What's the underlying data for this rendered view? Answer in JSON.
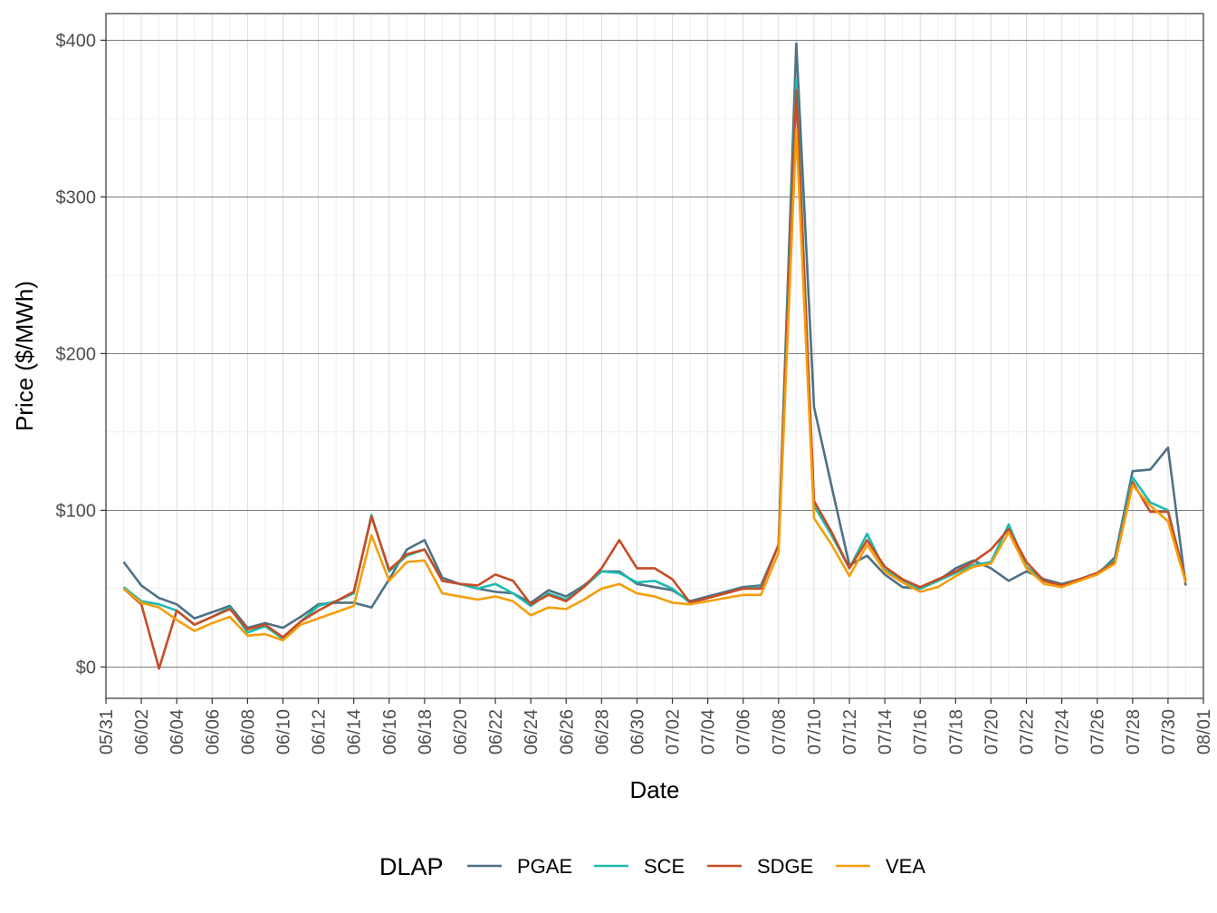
{
  "chart_data": {
    "type": "line",
    "title": "",
    "xlabel": "Date",
    "ylabel": "Price ($/MWh)",
    "ylim": [
      -20,
      417
    ],
    "xlim": [
      "05/31",
      "08/01"
    ],
    "y_ticks": [
      0,
      100,
      200,
      300,
      400
    ],
    "y_tick_labels": [
      "$0",
      "$100",
      "$200",
      "$300",
      "$400"
    ],
    "x_tick_labels": [
      "05/31",
      "06/02",
      "06/04",
      "06/06",
      "06/08",
      "06/10",
      "06/12",
      "06/14",
      "06/16",
      "06/18",
      "06/20",
      "06/22",
      "06/24",
      "06/26",
      "06/28",
      "06/30",
      "07/02",
      "07/04",
      "07/06",
      "07/08",
      "07/10",
      "07/12",
      "07/14",
      "07/16",
      "07/18",
      "07/20",
      "07/22",
      "07/24",
      "07/26",
      "07/28",
      "07/30",
      "08/01"
    ],
    "grid": true,
    "legend": {
      "title": "DLAP",
      "position": "bottom"
    },
    "x": [
      "06/01",
      "06/02",
      "06/03",
      "06/04",
      "06/05",
      "06/06",
      "06/07",
      "06/08",
      "06/09",
      "06/10",
      "06/11",
      "06/12",
      "06/13",
      "06/14",
      "06/15",
      "06/16",
      "06/17",
      "06/18",
      "06/19",
      "06/20",
      "06/21",
      "06/22",
      "06/23",
      "06/24",
      "06/25",
      "06/26",
      "06/27",
      "06/28",
      "06/29",
      "06/30",
      "07/01",
      "07/02",
      "07/03",
      "07/04",
      "07/05",
      "07/06",
      "07/07",
      "07/08",
      "07/09",
      "07/10",
      "07/11",
      "07/12",
      "07/13",
      "07/14",
      "07/15",
      "07/16",
      "07/17",
      "07/18",
      "07/19",
      "07/20",
      "07/21",
      "07/22",
      "07/23",
      "07/24",
      "07/25",
      "07/26",
      "07/27",
      "07/28",
      "07/29",
      "07/30",
      "07/31"
    ],
    "series": [
      {
        "name": "PGAE",
        "color": "#4e7184",
        "values": [
          67,
          52,
          44,
          40,
          31,
          35,
          39,
          25,
          28,
          25,
          32,
          40,
          41,
          41,
          38,
          56,
          75,
          81,
          57,
          53,
          50,
          48,
          47,
          41,
          49,
          45,
          52,
          61,
          61,
          53,
          51,
          49,
          42,
          45,
          48,
          51,
          52,
          78,
          398,
          166,
          115,
          65,
          71,
          59,
          51,
          50,
          55,
          63,
          68,
          63,
          55,
          61,
          56,
          53,
          56,
          59,
          70,
          125,
          126,
          140,
          52
        ]
      },
      {
        "name": "SCE",
        "color": "#1bbbad",
        "values": [
          51,
          42,
          40,
          36,
          27,
          32,
          38,
          22,
          26,
          18,
          29,
          39,
          42,
          47,
          97,
          61,
          71,
          75,
          55,
          53,
          50,
          53,
          47,
          39,
          47,
          43,
          51,
          61,
          60,
          54,
          55,
          50,
          41,
          44,
          47,
          50,
          51,
          78,
          375,
          103,
          84,
          63,
          85,
          62,
          55,
          50,
          55,
          60,
          65,
          67,
          91,
          64,
          55,
          52,
          56,
          60,
          68,
          121,
          105,
          100,
          55
        ]
      },
      {
        "name": "SDGE",
        "color": "#c84b26",
        "values": [
          50,
          40,
          -1,
          36,
          27,
          32,
          37,
          24,
          27,
          19,
          29,
          36,
          42,
          48,
          96,
          62,
          72,
          75,
          55,
          53,
          52,
          59,
          55,
          40,
          46,
          42,
          51,
          63,
          81,
          63,
          63,
          56,
          41,
          44,
          47,
          50,
          50,
          78,
          368,
          106,
          86,
          63,
          81,
          64,
          56,
          51,
          56,
          61,
          67,
          75,
          88,
          67,
          55,
          52,
          56,
          60,
          67,
          118,
          99,
          99,
          55
        ]
      },
      {
        "name": "VEA",
        "color": "#f59e0b",
        "values": [
          50,
          41,
          38,
          30,
          23,
          28,
          32,
          20,
          21,
          17,
          27,
          31,
          35,
          39,
          84,
          55,
          67,
          68,
          47,
          45,
          43,
          45,
          42,
          33,
          38,
          37,
          43,
          50,
          53,
          47,
          45,
          41,
          40,
          42,
          44,
          46,
          46,
          73,
          343,
          95,
          78,
          58,
          78,
          61,
          54,
          48,
          51,
          58,
          64,
          66,
          86,
          63,
          53,
          51,
          55,
          59,
          66,
          116,
          103,
          93,
          54
        ]
      }
    ]
  }
}
